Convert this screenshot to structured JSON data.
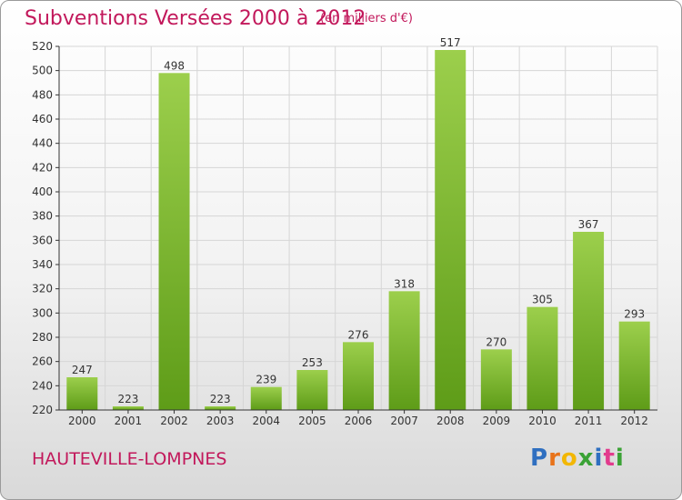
{
  "header": {
    "title": "Subventions Versées 2000 à 2012",
    "unit": "(en milliers d'€)"
  },
  "footer": {
    "commune": "HAUTEVILLE-LOMPNES",
    "logo_text": "Proxiti"
  },
  "colors": {
    "title": "#c2185b",
    "bar_light": "#9ccf4c",
    "bar_dark": "#5e9c18",
    "grid": "#d6d6d6",
    "axis": "#333333"
  },
  "chart_data": {
    "type": "bar",
    "title": "Subventions Versées 2000 à 2012",
    "subtitle": "(en milliers d'€)",
    "categories": [
      "2000",
      "2001",
      "2002",
      "2003",
      "2004",
      "2005",
      "2006",
      "2007",
      "2008",
      "2009",
      "2010",
      "2011",
      "2012"
    ],
    "values": [
      247,
      223,
      498,
      223,
      239,
      253,
      276,
      318,
      517,
      270,
      305,
      367,
      293
    ],
    "ylim": [
      220,
      520
    ],
    "yticks": [
      220,
      240,
      260,
      280,
      300,
      320,
      340,
      360,
      380,
      400,
      420,
      440,
      460,
      480,
      500,
      520
    ],
    "grid": true,
    "legend": "none"
  }
}
